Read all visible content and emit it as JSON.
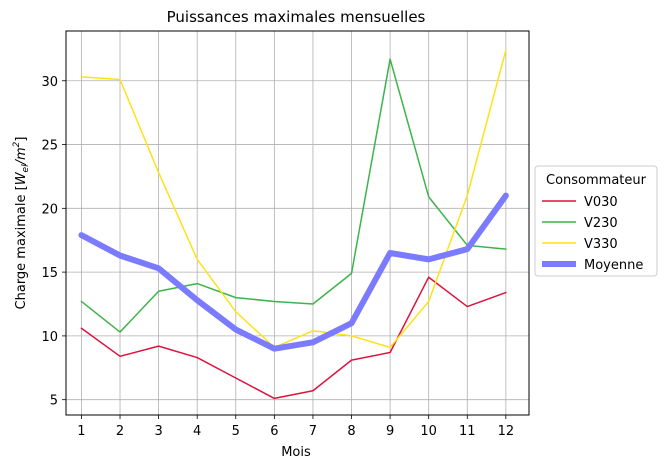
{
  "chart_data": {
    "type": "line",
    "title": "Puissances maximales mensuelles",
    "xlabel": "Mois",
    "ylabel_prefix": "Charge maximale [",
    "ylabel_var": "W",
    "ylabel_sub": "el",
    "ylabel_slash": "/m",
    "ylabel_sup": "2",
    "ylabel_suffix": "]",
    "x": [
      1,
      2,
      3,
      4,
      5,
      6,
      7,
      8,
      9,
      10,
      11,
      12
    ],
    "xlim": [
      0.6,
      12.6
    ],
    "ylim": [
      3.8,
      33.9
    ],
    "xticks": [
      1,
      2,
      3,
      4,
      5,
      6,
      7,
      8,
      9,
      10,
      11,
      12
    ],
    "yticks": [
      5,
      10,
      15,
      20,
      25,
      30
    ],
    "grid": true,
    "legend": {
      "title": "Consommateur",
      "placement": "right-outside"
    },
    "series": [
      {
        "name": "V030",
        "color": "#dc143c",
        "width": 1.5,
        "values": [
          10.6,
          8.4,
          9.2,
          8.3,
          6.7,
          5.1,
          5.7,
          8.1,
          8.7,
          14.6,
          12.3,
          13.4
        ]
      },
      {
        "name": "V230",
        "color": "#3cb44b",
        "width": 1.5,
        "values": [
          12.7,
          10.3,
          13.5,
          14.1,
          13.0,
          12.7,
          12.5,
          14.9,
          31.7,
          20.9,
          17.1,
          16.8
        ]
      },
      {
        "name": "V330",
        "color": "#ffe119",
        "width": 1.5,
        "values": [
          30.3,
          30.1,
          22.8,
          16.0,
          11.9,
          9.1,
          10.4,
          10.0,
          9.1,
          12.7,
          21.0,
          32.4
        ]
      },
      {
        "name": "Moyenne",
        "color": "#7b7bff",
        "width": 6,
        "values": [
          17.9,
          16.3,
          15.3,
          12.8,
          10.5,
          9.0,
          9.5,
          11.0,
          16.5,
          16.0,
          16.8,
          21.0
        ]
      }
    ]
  }
}
